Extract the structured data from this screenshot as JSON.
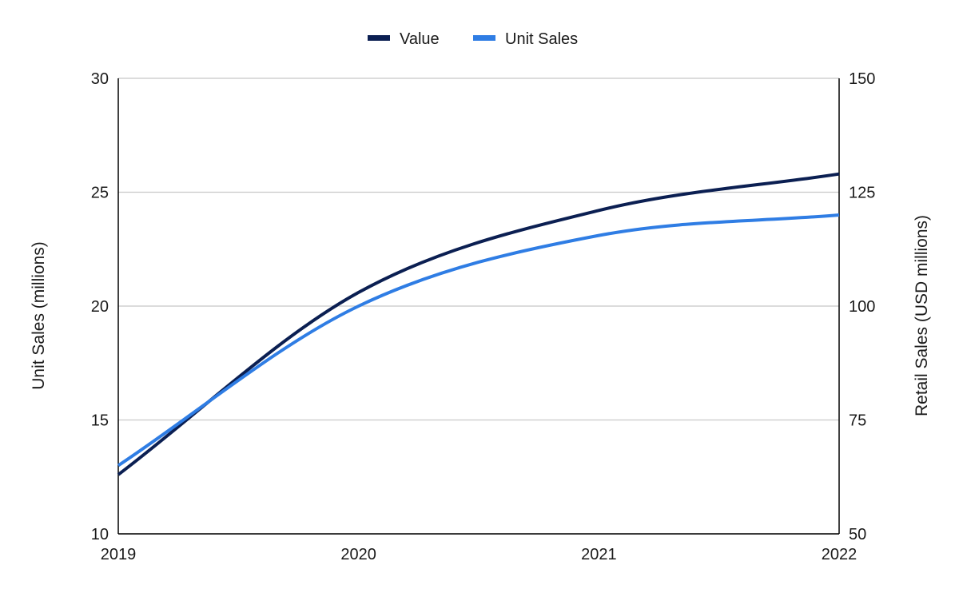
{
  "chart_data": {
    "type": "line",
    "x": [
      "2019",
      "2020",
      "2021",
      "2022"
    ],
    "xticks": [
      "2019",
      "2020",
      "2021",
      "2022"
    ],
    "series": [
      {
        "name": "Value",
        "axis": "right",
        "color": "#0b1f52",
        "values": [
          63,
          103,
          121,
          129
        ]
      },
      {
        "name": "Unit Sales",
        "axis": "left",
        "color": "#2f7de4",
        "values": [
          13,
          20,
          23.1,
          24
        ]
      }
    ],
    "y_left": {
      "label": "Unit Sales (millions)",
      "ylim": [
        10,
        30
      ],
      "ticks": [
        "10",
        "15",
        "20",
        "25",
        "30"
      ]
    },
    "y_right": {
      "label": "Retail Sales (USD millions)",
      "ylim": [
        50,
        150
      ],
      "ticks": [
        "50",
        "75",
        "100",
        "125",
        "150"
      ]
    },
    "grid": true,
    "legend": "top-center",
    "gridline_color": "#c8c8c8",
    "axis_color": "#000000"
  }
}
